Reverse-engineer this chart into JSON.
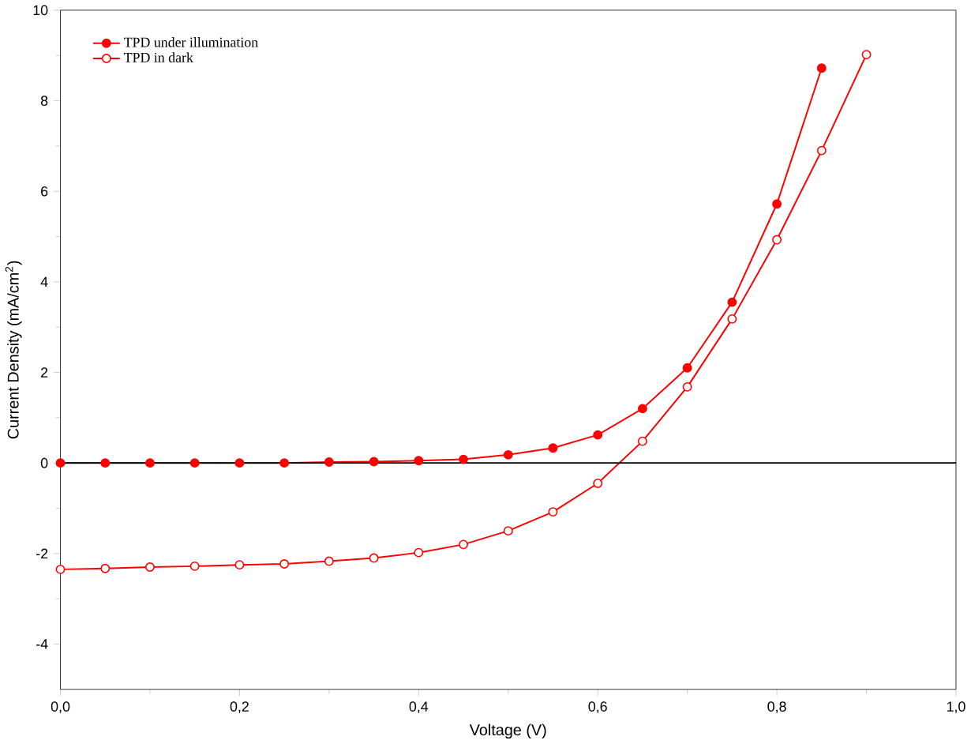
{
  "chart_data": {
    "type": "line",
    "xlabel": "Voltage (V)",
    "ylabel": "Current Density (mA/cm$^{2}$)",
    "x": [
      0,
      0.05,
      0.1,
      0.15,
      0.2,
      0.25,
      0.3,
      0.35,
      0.4,
      0.45,
      0.5,
      0.55,
      0.6,
      0.65,
      0.7,
      0.75,
      0.8,
      0.85,
      0.9
    ],
    "series": [
      {
        "name": "TPD under illumination",
        "color": "#ff0000",
        "marker": "circle",
        "values": [
          0.0,
          0.0,
          0.0,
          0.0,
          0.0,
          0.0,
          0.02,
          0.03,
          0.05,
          0.08,
          0.18,
          0.33,
          0.62,
          1.2,
          2.1,
          3.55,
          5.72,
          8.72,
          null
        ]
      },
      {
        "name": "TPD in dark",
        "color": "#ff0000",
        "marker": "circle",
        "values": [
          -2.35,
          -2.33,
          -2.3,
          -2.28,
          -2.25,
          -2.23,
          -2.17,
          -2.1,
          -1.98,
          -1.8,
          -1.5,
          -1.08,
          -0.45,
          0.48,
          1.68,
          3.18,
          4.93,
          6.9,
          9.02
        ]
      }
    ],
    "xlim": [
      0,
      1.0
    ],
    "ylim": [
      -5,
      10
    ],
    "xticks": [
      {
        "value": 0,
        "label": "0,0"
      },
      {
        "value": 0.2,
        "label": "0,2"
      },
      {
        "value": 0.4,
        "label": "0,4"
      },
      {
        "value": 0.6,
        "label": "0,6"
      },
      {
        "value": 0.8,
        "label": "0,8"
      },
      {
        "value": 1.0,
        "label": "1,0"
      }
    ],
    "yticks": [
      -4,
      -2,
      0,
      2,
      4,
      6,
      8,
      10
    ],
    "ref_lines": [
      {
        "axis": "y",
        "value": 0,
        "color": "#000000"
      }
    ],
    "legend": "top left",
    "grid": false,
    "line_style": "solid"
  }
}
